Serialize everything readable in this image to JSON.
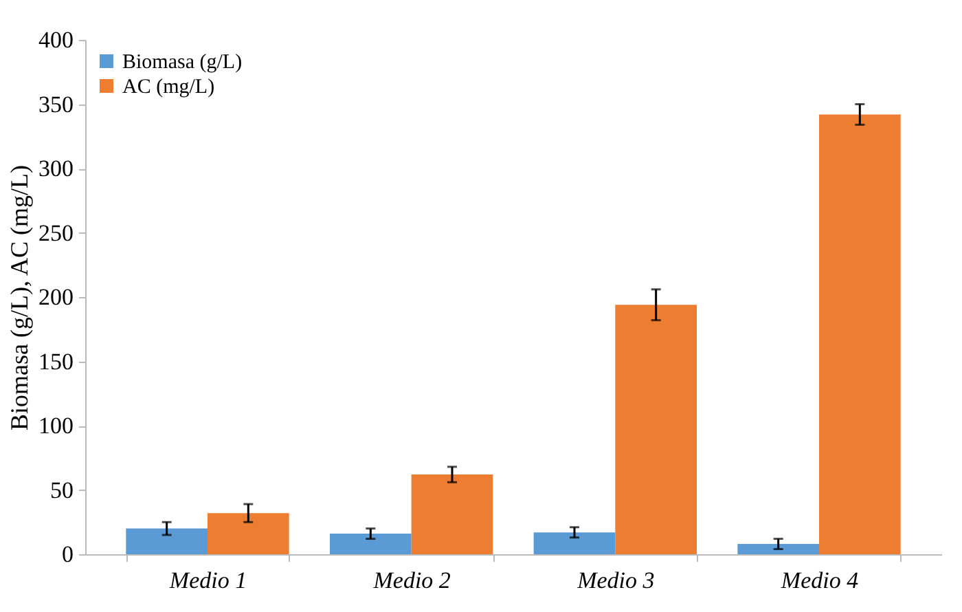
{
  "chart_data": {
    "type": "bar",
    "ylabel": "Biomasa (g/L), AC (mg/L)",
    "categories": [
      "Medio 1",
      "Medio 2",
      "Medio 3",
      "Medio 4"
    ],
    "series": [
      {
        "name": "Biomasa (g/L)",
        "color": "#5b9bd5",
        "values": [
          20,
          16,
          17,
          8
        ],
        "errors": [
          5,
          4,
          4,
          4
        ]
      },
      {
        "name": "AC (mg/L)",
        "color": "#ed7d31",
        "values": [
          32,
          62,
          194,
          342
        ],
        "errors": [
          7,
          6,
          12,
          8
        ]
      }
    ],
    "ylim": [
      0,
      400
    ],
    "yticks": [
      0,
      50,
      100,
      150,
      200,
      250,
      300,
      350,
      400
    ],
    "grid": false,
    "legend": "top left"
  }
}
